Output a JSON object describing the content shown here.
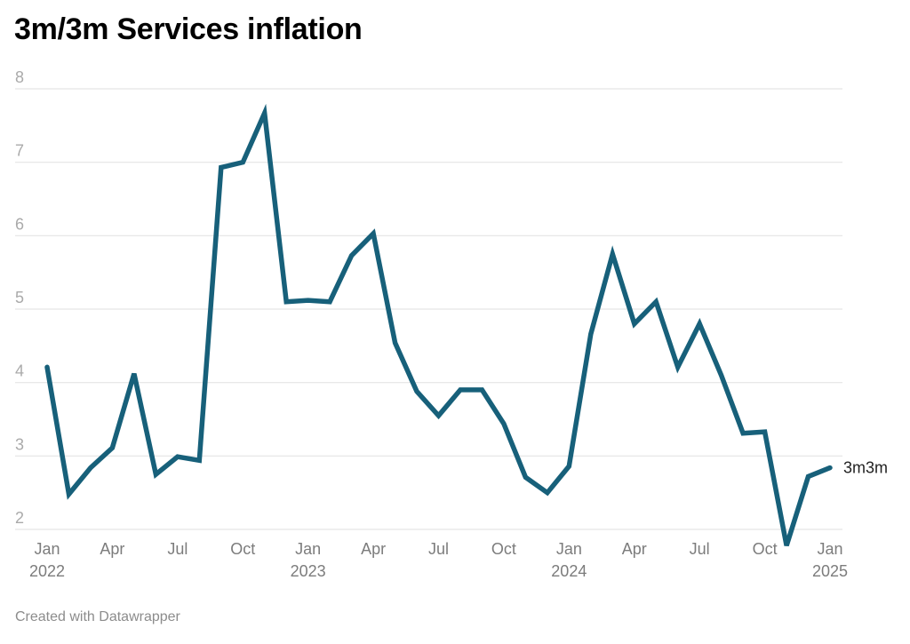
{
  "title": "3m/3m Services inflation",
  "footer": "Created with Datawrapper",
  "colors": {
    "line": "#17607a",
    "grid": "#e5e5e5",
    "ytick": "#aaaaaa",
    "xtick": "#7c7c7c"
  },
  "chart_data": {
    "type": "line",
    "title": "3m/3m Services inflation",
    "xlabel": "",
    "ylabel": "",
    "ylim": [
      2,
      8
    ],
    "grid": true,
    "yticks": [
      "2",
      "3",
      "4",
      "5",
      "6",
      "7",
      "8"
    ],
    "xticks": [
      {
        "index": 0,
        "month": "Jan",
        "year": "2022"
      },
      {
        "index": 3,
        "month": "Apr",
        "year": ""
      },
      {
        "index": 6,
        "month": "Jul",
        "year": ""
      },
      {
        "index": 9,
        "month": "Oct",
        "year": ""
      },
      {
        "index": 12,
        "month": "Jan",
        "year": "2023"
      },
      {
        "index": 15,
        "month": "Apr",
        "year": ""
      },
      {
        "index": 18,
        "month": "Jul",
        "year": ""
      },
      {
        "index": 21,
        "month": "Oct",
        "year": ""
      },
      {
        "index": 24,
        "month": "Jan",
        "year": "2024"
      },
      {
        "index": 27,
        "month": "Apr",
        "year": ""
      },
      {
        "index": 30,
        "month": "Jul",
        "year": ""
      },
      {
        "index": 33,
        "month": "Oct",
        "year": ""
      },
      {
        "index": 36,
        "month": "Jan",
        "year": "2025"
      }
    ],
    "x": [
      "2022-01",
      "2022-02",
      "2022-03",
      "2022-04",
      "2022-05",
      "2022-06",
      "2022-07",
      "2022-08",
      "2022-09",
      "2022-10",
      "2022-11",
      "2022-12",
      "2023-01",
      "2023-02",
      "2023-03",
      "2023-04",
      "2023-05",
      "2023-06",
      "2023-07",
      "2023-08",
      "2023-09",
      "2023-10",
      "2023-11",
      "2023-12",
      "2024-01",
      "2024-02",
      "2024-03",
      "2024-04",
      "2024-05",
      "2024-06",
      "2024-07",
      "2024-08",
      "2024-09",
      "2024-10",
      "2024-11",
      "2024-12",
      "2025-01"
    ],
    "series": [
      {
        "name": "3m3m",
        "values": [
          4.21,
          2.48,
          2.84,
          3.11,
          4.12,
          2.75,
          2.99,
          2.94,
          6.93,
          7.0,
          7.67,
          5.1,
          5.12,
          5.1,
          5.73,
          6.03,
          4.54,
          3.88,
          3.55,
          3.9,
          3.9,
          3.44,
          2.71,
          2.5,
          2.86,
          4.66,
          5.75,
          4.8,
          5.1,
          4.21,
          4.8,
          4.1,
          3.31,
          3.33,
          1.78,
          2.72,
          2.84
        ]
      }
    ]
  }
}
